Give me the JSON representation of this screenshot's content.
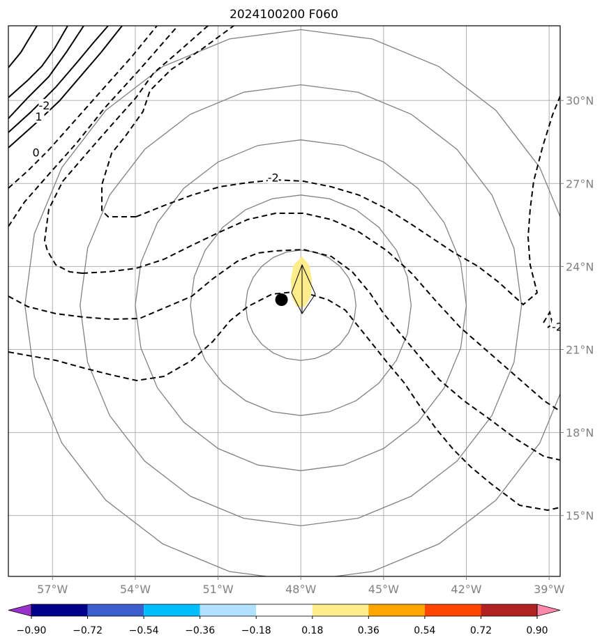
{
  "chart_data": {
    "type": "contour",
    "title": "2024100200 F060",
    "lon_ticks": [
      {
        "value": -57,
        "label": "57°W"
      },
      {
        "value": -54,
        "label": "54°W"
      },
      {
        "value": -51,
        "label": "51°W"
      },
      {
        "value": -48,
        "label": "48°W"
      },
      {
        "value": -45,
        "label": "45°W"
      },
      {
        "value": -42,
        "label": "42°W"
      },
      {
        "value": -39,
        "label": "39°W"
      }
    ],
    "lat_ticks": [
      {
        "value": 30,
        "label": "30°N"
      },
      {
        "value": 27,
        "label": "27°N"
      },
      {
        "value": 24,
        "label": "24°N"
      },
      {
        "value": 21,
        "label": "21°N"
      },
      {
        "value": 18,
        "label": "18°N"
      },
      {
        "value": 15,
        "label": "15°N"
      }
    ],
    "lon_range": [
      -58.6,
      -38.6
    ],
    "lat_range": [
      12.8,
      32.7
    ],
    "grid": true,
    "range_rings_deg": [
      2,
      4,
      6,
      8,
      10
    ],
    "center": {
      "lon": -48,
      "lat": 22.6
    },
    "storm_position": {
      "lon": -48.7,
      "lat": 22.8
    },
    "colorbar": {
      "orientation": "horizontal",
      "extend": "both",
      "levels": [
        "-0.90",
        "-0.72",
        "-0.54",
        "-0.36",
        "-0.18",
        "0.18",
        "0.36",
        "0.54",
        "0.72",
        "0.90"
      ],
      "colors": [
        "#9932cc",
        "#00008b",
        "#3a5fcd",
        "#00bfff",
        "#b0e2ff",
        "#ffffff",
        "#ffec8b",
        "#ffa500",
        "#ff4500",
        "#b22222",
        "#ff88aa"
      ]
    },
    "contour_labels": [
      {
        "text": "-2",
        "lon": -57.3,
        "lat": 29.8
      },
      {
        "text": "1",
        "lon": -57.5,
        "lat": 29.4
      },
      {
        "text": "0",
        "lon": -57.6,
        "lat": 28.1
      },
      {
        "text": "-2",
        "lon": -49.0,
        "lat": 27.2
      },
      {
        "text": "-2",
        "lon": -38.7,
        "lat": 21.8
      }
    ]
  }
}
